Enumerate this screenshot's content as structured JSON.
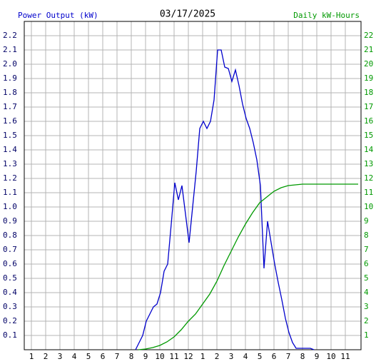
{
  "chart_data": {
    "type": "line",
    "title": "03/17/2025",
    "ylabel": "Power Output (kW)",
    "y2label": "Daily kW-Hours",
    "xlim": [
      0.5,
      24.1
    ],
    "xticks": [
      {
        "value": 1,
        "label": "1"
      },
      {
        "value": 2,
        "label": "2"
      },
      {
        "value": 3,
        "label": "3"
      },
      {
        "value": 4,
        "label": "4"
      },
      {
        "value": 5,
        "label": "5"
      },
      {
        "value": 6,
        "label": "6"
      },
      {
        "value": 7,
        "label": "7"
      },
      {
        "value": 8,
        "label": "8"
      },
      {
        "value": 9,
        "label": "9"
      },
      {
        "value": 10,
        "label": "10"
      },
      {
        "value": 11,
        "label": "11"
      },
      {
        "value": 12,
        "label": "12"
      },
      {
        "value": 13,
        "label": "1"
      },
      {
        "value": 14,
        "label": "2"
      },
      {
        "value": 15,
        "label": "3"
      },
      {
        "value": 16,
        "label": "4"
      },
      {
        "value": 17,
        "label": "5"
      },
      {
        "value": 18,
        "label": "6"
      },
      {
        "value": 19,
        "label": "7"
      },
      {
        "value": 20,
        "label": "8"
      },
      {
        "value": 21,
        "label": "9"
      },
      {
        "value": 22,
        "label": "10"
      },
      {
        "value": 23,
        "label": "11"
      }
    ],
    "ylim": [
      0,
      2.3
    ],
    "yticks": [
      0.1,
      0.2,
      0.3,
      0.4,
      0.5,
      0.6,
      0.7,
      0.8,
      0.9,
      {
        "value": 1,
        "label": "1.0"
      },
      1.1,
      1.2,
      1.3,
      1.4,
      1.5,
      1.6,
      1.7,
      1.8,
      1.9,
      {
        "value": 2,
        "label": "2.0"
      },
      2.1,
      2.2
    ],
    "y2lim": [
      0,
      23
    ],
    "y2ticks": [
      1,
      2,
      3,
      4,
      5,
      6,
      7,
      8,
      9,
      10,
      11,
      12,
      13,
      14,
      15,
      16,
      17,
      18,
      19,
      20,
      21,
      22
    ],
    "grid": true,
    "series": [
      {
        "color": "#0000cc",
        "x": [
          8.3,
          8.55,
          8.8,
          9.05,
          9.3,
          9.55,
          9.8,
          10.05,
          10.3,
          10.55,
          10.8,
          11.05,
          11.3,
          11.55,
          11.8,
          12.05,
          12.3,
          12.55,
          12.8,
          13.05,
          13.3,
          13.55,
          13.8,
          14.05,
          14.3,
          14.55,
          14.8,
          15.05,
          15.3,
          15.55,
          15.8,
          16.05,
          16.3,
          16.55,
          16.8,
          17.05,
          17.3,
          17.55,
          17.8,
          18.05,
          18.3,
          18.55,
          18.8,
          19.05,
          19.3,
          19.55,
          19.8,
          20.55,
          20.8
        ],
        "values": [
          0,
          0.05,
          0.1,
          0.2,
          0.25,
          0.3,
          0.32,
          0.4,
          0.55,
          0.6,
          0.88,
          1.17,
          1.05,
          1.15,
          0.95,
          0.75,
          1.0,
          1.25,
          1.55,
          1.6,
          1.55,
          1.6,
          1.75,
          2.1,
          2.1,
          1.98,
          1.97,
          1.88,
          1.96,
          1.85,
          1.72,
          1.62,
          1.55,
          1.45,
          1.33,
          1.15,
          0.57,
          0.9,
          0.75,
          0.6,
          0.47,
          0.35,
          0.22,
          0.12,
          0.05,
          0.01,
          0.01,
          0.01,
          0
        ]
      },
      {
        "color": "#009900",
        "axis": "y2",
        "x": [
          8.5,
          9,
          9.5,
          10,
          10.5,
          11,
          11.5,
          12,
          12.5,
          13,
          13.5,
          14,
          14.5,
          15,
          15.5,
          16,
          16.5,
          17,
          17.5,
          18,
          18.5,
          19,
          19.5,
          20,
          23.9
        ],
        "values": [
          0,
          0.05,
          0.15,
          0.3,
          0.55,
          0.9,
          1.4,
          2.0,
          2.5,
          3.2,
          3.9,
          4.8,
          5.9,
          6.9,
          7.9,
          8.8,
          9.6,
          10.3,
          10.7,
          11.1,
          11.35,
          11.5,
          11.55,
          11.6,
          11.6
        ]
      }
    ]
  }
}
